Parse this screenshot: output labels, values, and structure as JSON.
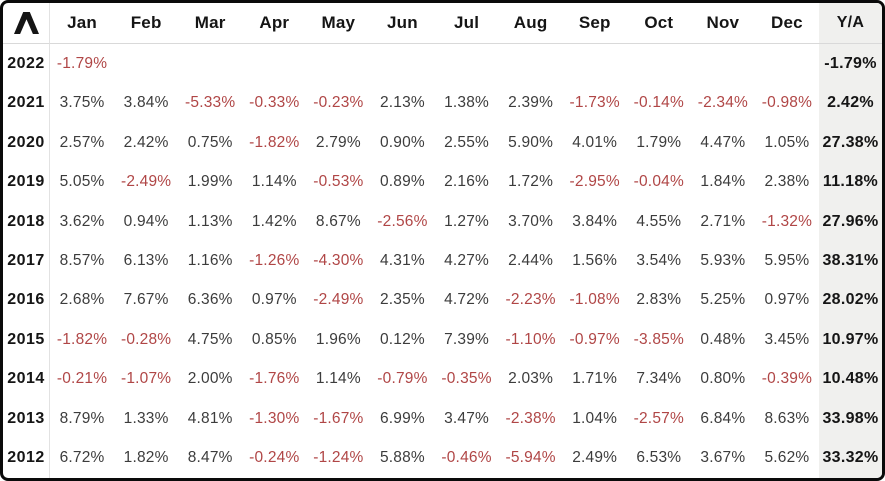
{
  "header": {
    "months": [
      "Jan",
      "Feb",
      "Mar",
      "Apr",
      "May",
      "Jun",
      "Jul",
      "Aug",
      "Sep",
      "Oct",
      "Nov",
      "Dec"
    ],
    "ya_label": "Y/A",
    "logo_symbol": "lambda-caret"
  },
  "rows": [
    {
      "year": "2022",
      "monthly": [
        "-1.79%",
        "",
        "",
        "",
        "",
        "",
        "",
        "",
        "",
        "",
        "",
        ""
      ],
      "ya": "-1.79%"
    },
    {
      "year": "2021",
      "monthly": [
        "3.75%",
        "3.84%",
        "-5.33%",
        "-0.33%",
        "-0.23%",
        "2.13%",
        "1.38%",
        "2.39%",
        "-1.73%",
        "-0.14%",
        "-2.34%",
        "-0.98%"
      ],
      "ya": "2.42%"
    },
    {
      "year": "2020",
      "monthly": [
        "2.57%",
        "2.42%",
        "0.75%",
        "-1.82%",
        "2.79%",
        "0.90%",
        "2.55%",
        "5.90%",
        "4.01%",
        "1.79%",
        "4.47%",
        "1.05%"
      ],
      "ya": "27.38%"
    },
    {
      "year": "2019",
      "monthly": [
        "5.05%",
        "-2.49%",
        "1.99%",
        "1.14%",
        "-0.53%",
        "0.89%",
        "2.16%",
        "1.72%",
        "-2.95%",
        "-0.04%",
        "1.84%",
        "2.38%"
      ],
      "ya": "11.18%"
    },
    {
      "year": "2018",
      "monthly": [
        "3.62%",
        "0.94%",
        "1.13%",
        "1.42%",
        "8.67%",
        "-2.56%",
        "1.27%",
        "3.70%",
        "3.84%",
        "4.55%",
        "2.71%",
        "-1.32%"
      ],
      "ya": "27.96%"
    },
    {
      "year": "2017",
      "monthly": [
        "8.57%",
        "6.13%",
        "1.16%",
        "-1.26%",
        "-4.30%",
        "4.31%",
        "4.27%",
        "2.44%",
        "1.56%",
        "3.54%",
        "5.93%",
        "5.95%"
      ],
      "ya": "38.31%"
    },
    {
      "year": "2016",
      "monthly": [
        "2.68%",
        "7.67%",
        "6.36%",
        "0.97%",
        "-2.49%",
        "2.35%",
        "4.72%",
        "-2.23%",
        "-1.08%",
        "2.83%",
        "5.25%",
        "0.97%"
      ],
      "ya": "28.02%"
    },
    {
      "year": "2015",
      "monthly": [
        "-1.82%",
        "-0.28%",
        "4.75%",
        "0.85%",
        "1.96%",
        "0.12%",
        "7.39%",
        "-1.10%",
        "-0.97%",
        "-3.85%",
        "0.48%",
        "3.45%"
      ],
      "ya": "10.97%"
    },
    {
      "year": "2014",
      "monthly": [
        "-0.21%",
        "-1.07%",
        "2.00%",
        "-1.76%",
        "1.14%",
        "-0.79%",
        "-0.35%",
        "2.03%",
        "1.71%",
        "7.34%",
        "0.80%",
        "-0.39%"
      ],
      "ya": "10.48%"
    },
    {
      "year": "2013",
      "monthly": [
        "8.79%",
        "1.33%",
        "4.81%",
        "-1.30%",
        "-1.67%",
        "6.99%",
        "3.47%",
        "-2.38%",
        "1.04%",
        "-2.57%",
        "6.84%",
        "8.63%"
      ],
      "ya": "33.98%"
    },
    {
      "year": "2012",
      "monthly": [
        "6.72%",
        "1.82%",
        "8.47%",
        "-0.24%",
        "-1.24%",
        "5.88%",
        "-0.46%",
        "-5.94%",
        "2.49%",
        "6.53%",
        "3.67%",
        "5.62%"
      ],
      "ya": "33.32%"
    }
  ],
  "colors": {
    "negative_text": "#b04646",
    "positive_text": "#3c3c3c",
    "header_text": "#151515",
    "ya_column_bg": "#f0f0ee",
    "border": "#0a0a0a",
    "separator": "#e2e2e2"
  },
  "chart_data": {
    "type": "table",
    "title": "",
    "columns": [
      "Jan",
      "Feb",
      "Mar",
      "Apr",
      "May",
      "Jun",
      "Jul",
      "Aug",
      "Sep",
      "Oct",
      "Nov",
      "Dec",
      "Y/A"
    ],
    "rows": [
      {
        "year": 2022,
        "values": [
          -1.79,
          null,
          null,
          null,
          null,
          null,
          null,
          null,
          null,
          null,
          null,
          null,
          -1.79
        ]
      },
      {
        "year": 2021,
        "values": [
          3.75,
          3.84,
          -5.33,
          -0.33,
          -0.23,
          2.13,
          1.38,
          2.39,
          -1.73,
          -0.14,
          -2.34,
          -0.98,
          2.42
        ]
      },
      {
        "year": 2020,
        "values": [
          2.57,
          2.42,
          0.75,
          -1.82,
          2.79,
          0.9,
          2.55,
          5.9,
          4.01,
          1.79,
          4.47,
          1.05,
          27.38
        ]
      },
      {
        "year": 2019,
        "values": [
          5.05,
          -2.49,
          1.99,
          1.14,
          -0.53,
          0.89,
          2.16,
          1.72,
          -2.95,
          -0.04,
          1.84,
          2.38,
          11.18
        ]
      },
      {
        "year": 2018,
        "values": [
          3.62,
          0.94,
          1.13,
          1.42,
          8.67,
          -2.56,
          1.27,
          3.7,
          3.84,
          4.55,
          2.71,
          -1.32,
          27.96
        ]
      },
      {
        "year": 2017,
        "values": [
          8.57,
          6.13,
          1.16,
          -1.26,
          -4.3,
          4.31,
          4.27,
          2.44,
          1.56,
          3.54,
          5.93,
          5.95,
          38.31
        ]
      },
      {
        "year": 2016,
        "values": [
          2.68,
          7.67,
          6.36,
          0.97,
          -2.49,
          2.35,
          4.72,
          -2.23,
          -1.08,
          2.83,
          5.25,
          0.97,
          28.02
        ]
      },
      {
        "year": 2015,
        "values": [
          -1.82,
          -0.28,
          4.75,
          0.85,
          1.96,
          0.12,
          7.39,
          -1.1,
          -0.97,
          -3.85,
          0.48,
          3.45,
          10.97
        ]
      },
      {
        "year": 2014,
        "values": [
          -0.21,
          -1.07,
          2.0,
          -1.76,
          1.14,
          -0.79,
          -0.35,
          2.03,
          1.71,
          7.34,
          0.8,
          -0.39,
          10.48
        ]
      },
      {
        "year": 2013,
        "values": [
          8.79,
          1.33,
          4.81,
          -1.3,
          -1.67,
          6.99,
          3.47,
          -2.38,
          1.04,
          -2.57,
          6.84,
          8.63,
          33.98
        ]
      },
      {
        "year": 2012,
        "values": [
          6.72,
          1.82,
          8.47,
          -0.24,
          -1.24,
          5.88,
          -0.46,
          -5.94,
          2.49,
          6.53,
          3.67,
          5.62,
          33.32
        ]
      }
    ],
    "units": "percent",
    "notes": "negative values shown in red; Y/A column shaded gray and bold"
  }
}
